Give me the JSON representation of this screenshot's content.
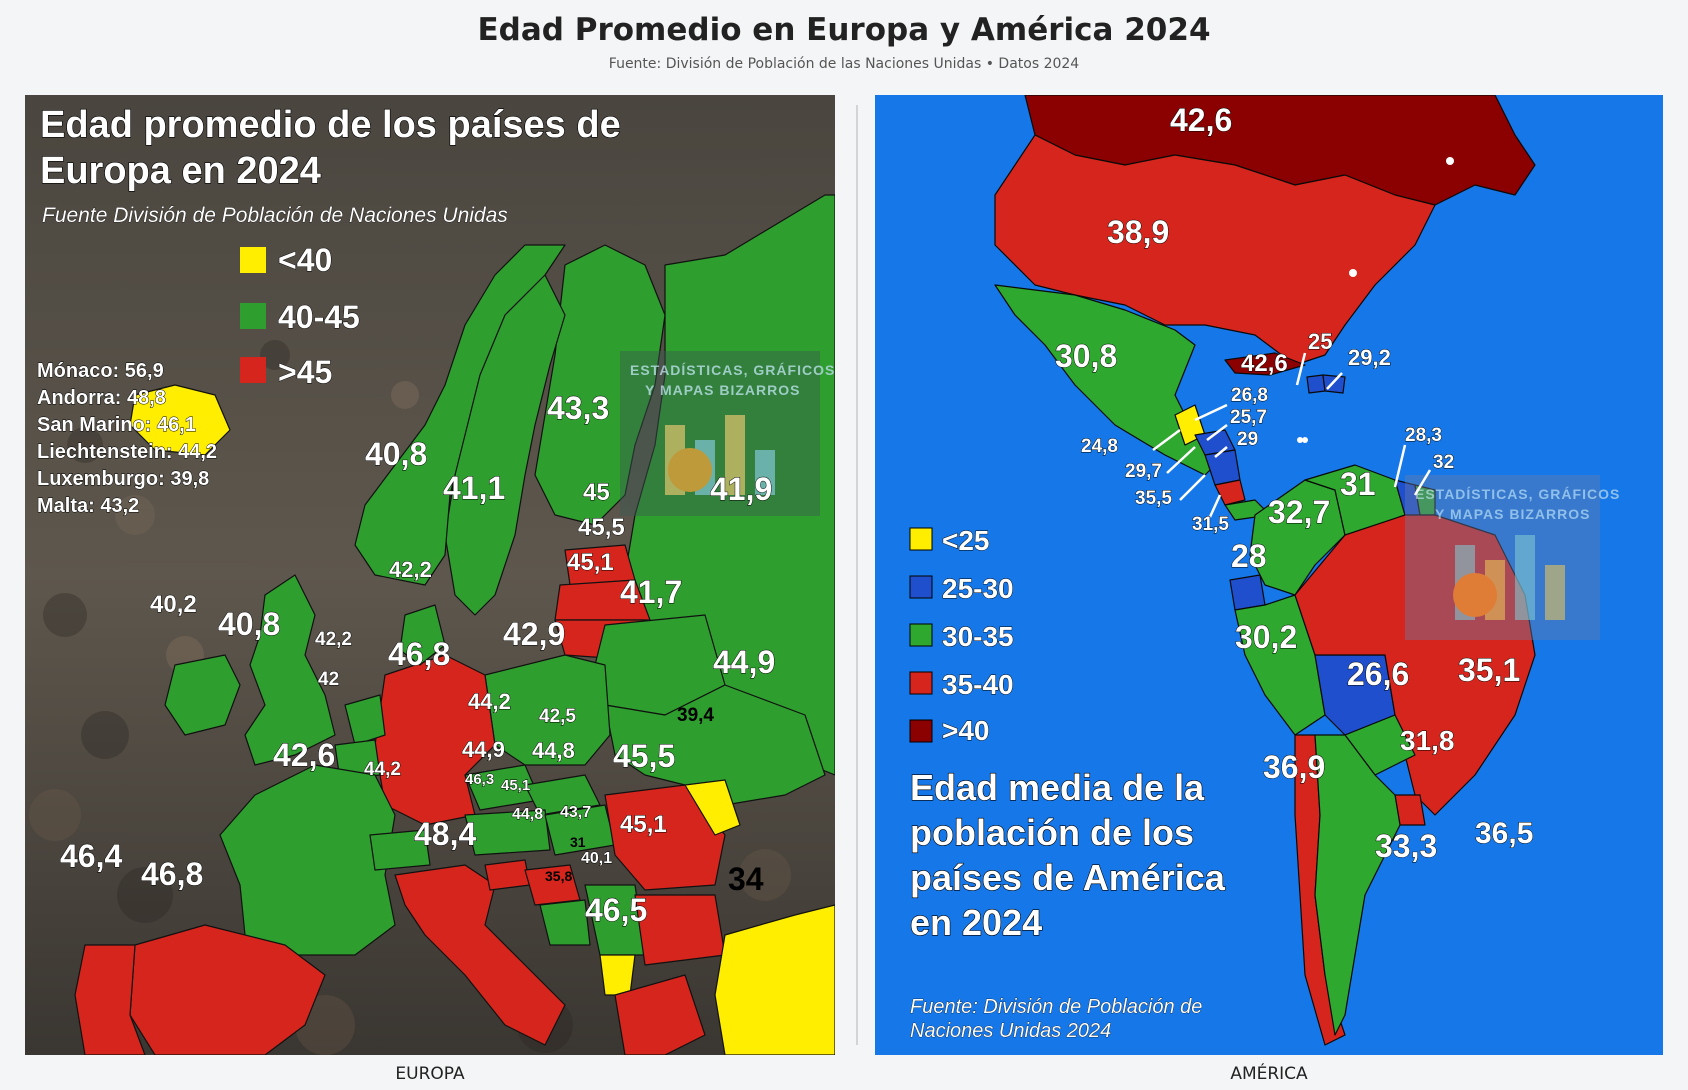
{
  "header": {
    "title": "Edad Promedio en Europa y América 2024",
    "subtitle": "Fuente: División de Población de las Naciones Unidas • Datos 2024"
  },
  "europe": {
    "caption": "EUROPA",
    "title_line1": "Edad promedio de los países de",
    "title_line2": "Europa en 2024",
    "source": "Fuente División de Población de Naciones Unidas",
    "legend": [
      {
        "label": "<40",
        "color": "#ffee00"
      },
      {
        "label": "40-45",
        "color": "#2e9e2e"
      },
      {
        "label": ">45",
        "color": "#d6251c"
      }
    ],
    "small_states": [
      "Mónaco: 56,9",
      "Andorra: 48,8",
      "San Marino: 46,1",
      "Liechtenstein: 44,2",
      "Luxemburgo: 39,8",
      "Malta: 43,2"
    ],
    "watermark_line1": "ESTADÍSTICAS, GRÁFICOS",
    "watermark_line2": "Y MAPAS BIZARROS",
    "labels": {
      "norway": "40,8",
      "sweden": "41,1",
      "finland": "43,3",
      "estonia": "45",
      "latvia": "45,5",
      "lithuania": "45,1",
      "russia": "41,9",
      "belarus": "41,7",
      "ukraine": "44,9",
      "poland": "42,9",
      "denmark": "42,2",
      "ireland": "40,2",
      "uk": "40,8",
      "netherlands": "42,2",
      "belgium": "42",
      "germany": "46,8",
      "czech": "44,2",
      "slovakia": "42,5",
      "austria": "44,9",
      "hungary": "44,8",
      "romania": "45,5",
      "moldova": "39,4",
      "switzerland": "44,2",
      "france": "42,6",
      "slovenia": "46,3",
      "croatia": "45,1",
      "bosnia": "44,8",
      "serbia": "43,7",
      "montenegro": "31",
      "kosovo": "40,1",
      "albania": "35,8",
      "bulgaria": "45,1",
      "italy": "48,4",
      "greece": "46,5",
      "portugal": "46,4",
      "spain": "46,8",
      "turkey": "34"
    }
  },
  "america": {
    "caption": "AMÉRICA",
    "title_line1": "Edad media de la",
    "title_line2": "población de los",
    "title_line3": "países de América",
    "title_line4": "en 2024",
    "source_line1": "Fuente: División de Población de",
    "source_line2": "Naciones Unidas 2024",
    "legend": [
      {
        "label": "<25",
        "color": "#ffee00"
      },
      {
        "label": "25-30",
        "color": "#1f4fcc"
      },
      {
        "label": "30-35",
        "color": "#2ea82e"
      },
      {
        "label": "35-40",
        "color": "#d6251c"
      },
      {
        "label": ">40",
        "color": "#8b0000"
      }
    ],
    "watermark_line1": "ESTADÍSTICAS, GRÁFICOS",
    "watermark_line2": "Y MAPAS BIZARROS",
    "labels": {
      "canada": "42,6",
      "usa": "38,9",
      "mexico": "30,8",
      "cuba": "42,6",
      "haiti": "25",
      "dominican": "29,2",
      "belize": "26,8",
      "honduras": "25,7",
      "guatemala": "24,8",
      "nicaragua": "29",
      "el_salvador": "29,7",
      "costa_rica": "35,5",
      "panama": "31,5",
      "venezuela": "31",
      "guyana": "28,3",
      "suriname": "32",
      "colombia": "32,7",
      "ecuador": "28",
      "peru": "30,2",
      "bolivia": "26,6",
      "brazil": "35,1",
      "paraguay": "31,8",
      "chile": "36,9",
      "argentina": "33,3",
      "uruguay": "36,5"
    }
  }
}
